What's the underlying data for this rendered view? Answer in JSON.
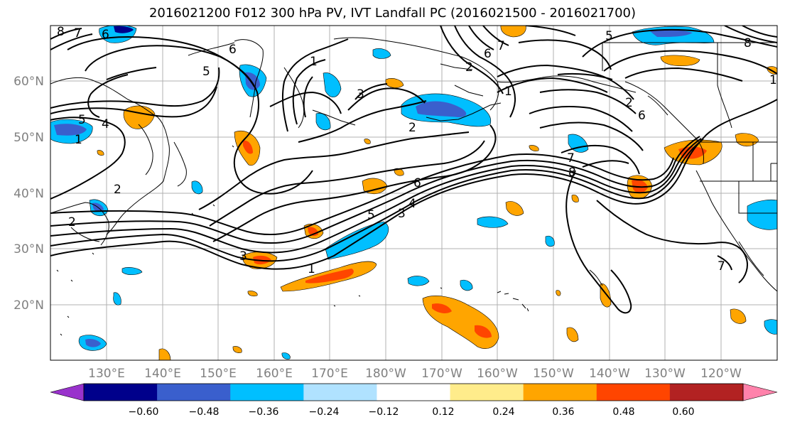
{
  "title": "2016021200 F012 300 hPa PV, IVT Landfall PC (2016021500 - 2016021700)",
  "map": {
    "lon_ticks": [
      "130°E",
      "140°E",
      "150°E",
      "160°E",
      "170°E",
      "180°W",
      "170°W",
      "160°W",
      "150°W",
      "140°W",
      "130°W",
      "120°W"
    ],
    "lat_ticks": [
      "60°N",
      "50°N",
      "40°N",
      "30°N",
      "20°N"
    ],
    "contour_labels": [
      "8",
      "7",
      "6",
      "6",
      "5",
      "5",
      "4",
      "1",
      "1",
      "3",
      "2",
      "2",
      "2",
      "7",
      "8",
      "6",
      "5",
      "4",
      "3",
      "1",
      "7",
      "2",
      "3",
      "5",
      "6",
      "2",
      "1",
      "6",
      "7",
      "8",
      "1",
      "5",
      "5",
      "3",
      "2"
    ]
  },
  "colorbar": {
    "colors": [
      "#9932cc",
      "#00008b",
      "#3a5fcd",
      "#00bfff",
      "#b0e2ff",
      "#ffffff",
      "#ffec8b",
      "#ffa500",
      "#ff4500",
      "#b22222",
      "#ff82ab"
    ],
    "labels": [
      "−0.60",
      "−0.48",
      "−0.36",
      "−0.24",
      "−0.12",
      "0.12",
      "0.24",
      "0.36",
      "0.48",
      "0.60"
    ]
  }
}
